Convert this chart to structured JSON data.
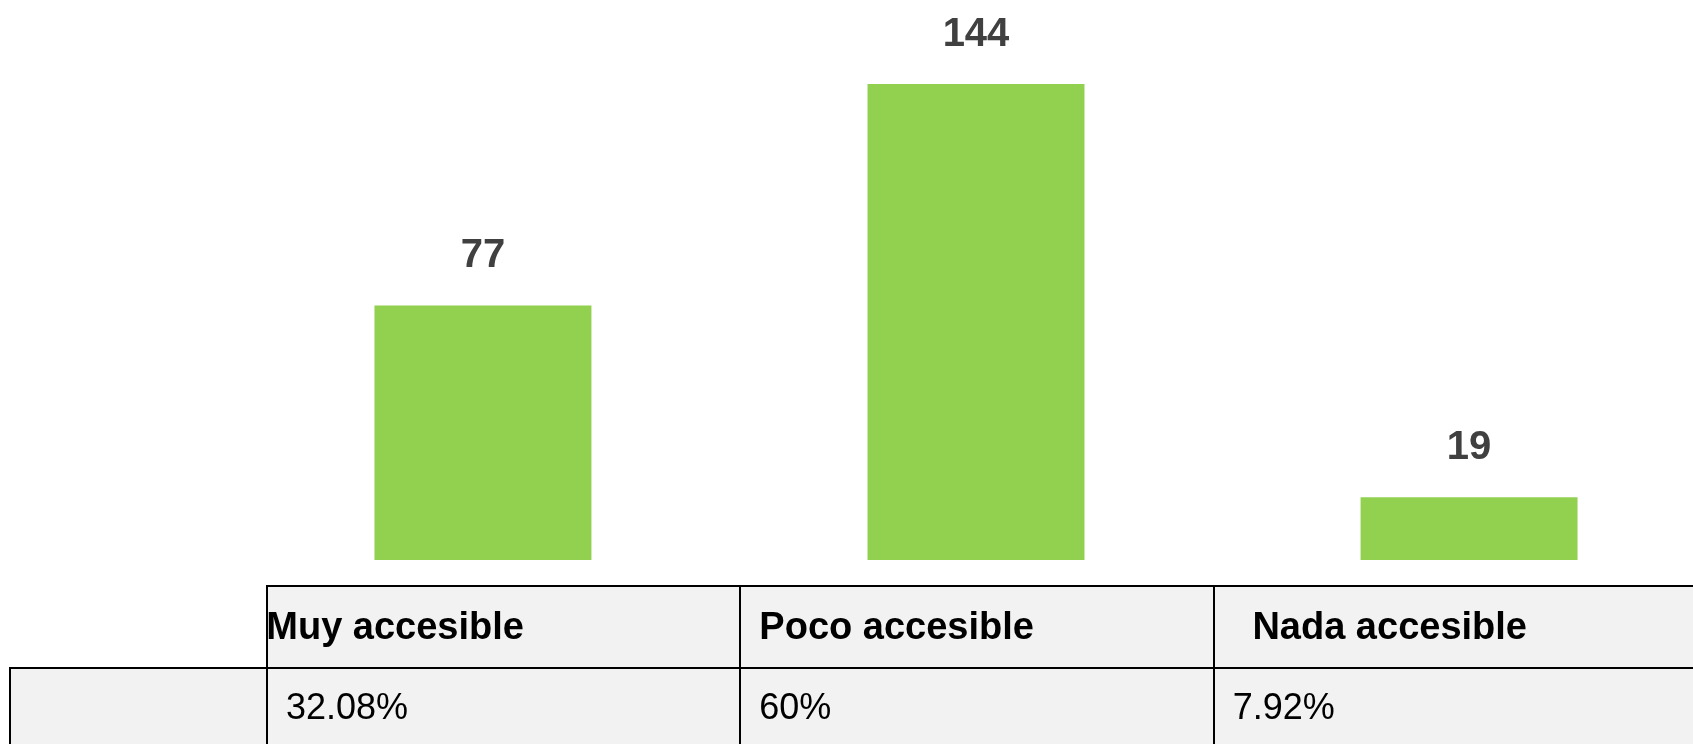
{
  "chart_data": {
    "type": "bar",
    "categories": [
      "Muy accesible",
      "Poco accesible",
      "Nada accesible"
    ],
    "values": [
      77,
      144,
      19
    ],
    "color": "#92d050",
    "data_labels": true,
    "annotations": [
      "32.08%",
      "60%",
      "7.92%"
    ]
  }
}
